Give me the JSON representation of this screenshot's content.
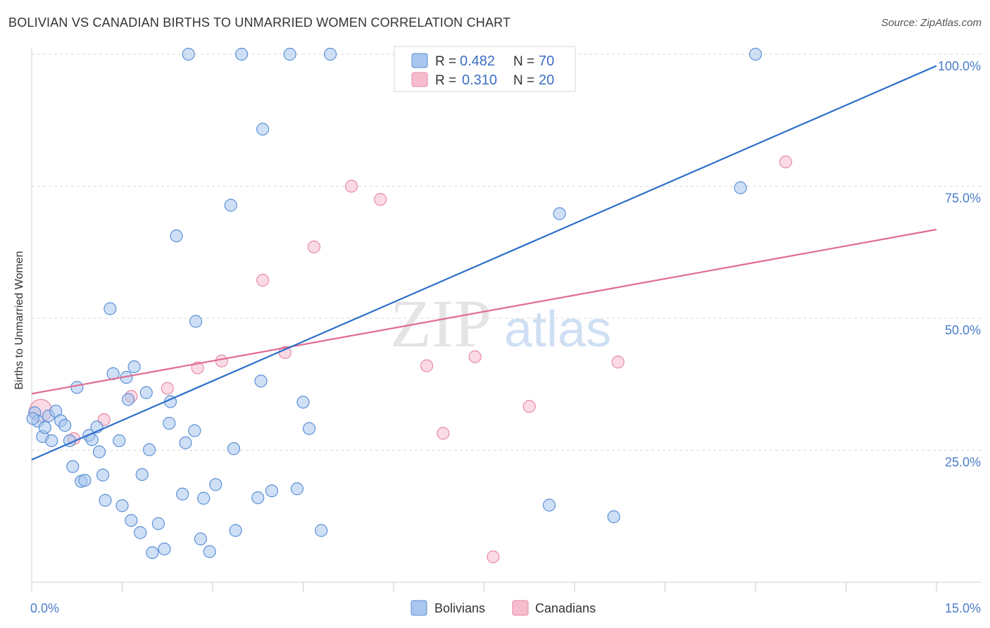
{
  "header": {
    "title": "BOLIVIAN VS CANADIAN BIRTHS TO UNMARRIED WOMEN CORRELATION CHART",
    "source": "Source: ZipAtlas.com"
  },
  "watermark": {
    "zip": "ZIP",
    "atlas": "atlas"
  },
  "colors": {
    "blue_fill": "#a8c6ee",
    "blue_stroke": "#5b8fd6",
    "blue_line": "#2b6fcb",
    "pink_fill": "#f6bccd",
    "pink_stroke": "#e68aa6",
    "pink_line": "#e06b93",
    "grid": "#d9d9d9",
    "tick_text": "#4a7cc9"
  },
  "legend": {
    "r_label": "R =",
    "n_label": "N =",
    "rows": [
      {
        "r": "0.482",
        "n": "70"
      },
      {
        "r": "0.310",
        "n": "20"
      }
    ]
  },
  "chart_data": {
    "type": "scatter",
    "title": "BOLIVIAN VS CANADIAN BIRTHS TO UNMARRIED WOMEN CORRELATION CHART",
    "ylabel": "Births to Unmarried Women",
    "xlim": [
      0,
      15
    ],
    "ylim": [
      0,
      102
    ],
    "x_tick_labels": [
      "0.0%",
      "15.0%"
    ],
    "y_ticks": [
      {
        "value": 25,
        "label": "25.0%"
      },
      {
        "value": 50,
        "label": "50.0%"
      },
      {
        "value": 75,
        "label": "75.0%"
      },
      {
        "value": 100,
        "label": "100.0%"
      }
    ],
    "series": [
      {
        "name": "Bolivians",
        "trend": {
          "x": [
            0,
            15
          ],
          "y": [
            23.2,
            97.8
          ]
        },
        "points": [
          [
            0.05,
            32.1
          ],
          [
            0.1,
            30.5
          ],
          [
            0.18,
            27.6
          ],
          [
            0.22,
            29.3
          ],
          [
            0.28,
            31.5
          ],
          [
            0.33,
            26.8
          ],
          [
            0.4,
            32.4
          ],
          [
            0.48,
            30.6
          ],
          [
            0.55,
            29.7
          ],
          [
            0.63,
            26.8
          ],
          [
            0.68,
            21.9
          ],
          [
            0.75,
            36.9
          ],
          [
            0.82,
            19.1
          ],
          [
            0.88,
            19.3
          ],
          [
            0.95,
            27.8
          ],
          [
            1.0,
            27.0
          ],
          [
            1.08,
            29.4
          ],
          [
            1.12,
            24.7
          ],
          [
            1.18,
            20.3
          ],
          [
            1.22,
            15.5
          ],
          [
            1.3,
            51.8
          ],
          [
            1.35,
            39.5
          ],
          [
            1.45,
            26.8
          ],
          [
            1.5,
            14.5
          ],
          [
            1.57,
            38.8
          ],
          [
            1.6,
            34.6
          ],
          [
            1.65,
            11.7
          ],
          [
            1.7,
            40.8
          ],
          [
            1.8,
            9.4
          ],
          [
            1.83,
            20.4
          ],
          [
            1.9,
            35.9
          ],
          [
            1.95,
            25.1
          ],
          [
            2.0,
            5.6
          ],
          [
            2.1,
            11.1
          ],
          [
            2.2,
            6.3
          ],
          [
            2.3,
            34.2
          ],
          [
            2.28,
            30.1
          ],
          [
            2.4,
            65.6
          ],
          [
            2.5,
            16.7
          ],
          [
            2.55,
            26.4
          ],
          [
            2.6,
            100.0
          ],
          [
            2.7,
            28.7
          ],
          [
            2.72,
            49.4
          ],
          [
            2.8,
            8.2
          ],
          [
            2.85,
            15.9
          ],
          [
            2.95,
            5.8
          ],
          [
            3.05,
            18.5
          ],
          [
            3.3,
            71.4
          ],
          [
            3.35,
            25.3
          ],
          [
            3.38,
            9.8
          ],
          [
            3.48,
            100.0
          ],
          [
            3.75,
            16.0
          ],
          [
            3.8,
            38.1
          ],
          [
            3.83,
            85.8
          ],
          [
            3.98,
            17.3
          ],
          [
            4.28,
            100.0
          ],
          [
            4.4,
            17.7
          ],
          [
            4.5,
            34.1
          ],
          [
            4.6,
            29.1
          ],
          [
            4.8,
            9.8
          ],
          [
            4.95,
            100.0
          ],
          [
            6.45,
            100.0
          ],
          [
            7.2,
            100.0
          ],
          [
            8.58,
            14.6
          ],
          [
            8.65,
            100.0
          ],
          [
            8.75,
            69.8
          ],
          [
            9.65,
            12.4
          ],
          [
            11.75,
            74.7
          ],
          [
            12.0,
            100.0
          ],
          [
            0.02,
            31.0
          ]
        ]
      },
      {
        "name": "Canadians",
        "trend": {
          "x": [
            0,
            15
          ],
          "y": [
            35.7,
            66.8
          ]
        },
        "points": [
          [
            0.15,
            32.5
          ],
          [
            0.7,
            27.2
          ],
          [
            1.2,
            30.8
          ],
          [
            1.65,
            35.2
          ],
          [
            2.25,
            36.7
          ],
          [
            2.75,
            40.6
          ],
          [
            3.15,
            41.9
          ],
          [
            3.83,
            57.2
          ],
          [
            4.2,
            43.5
          ],
          [
            4.68,
            63.5
          ],
          [
            5.3,
            75.0
          ],
          [
            5.78,
            72.5
          ],
          [
            6.55,
            41.0
          ],
          [
            6.82,
            28.2
          ],
          [
            7.35,
            42.7
          ],
          [
            7.65,
            4.8
          ],
          [
            8.25,
            33.3
          ],
          [
            9.72,
            41.7
          ],
          [
            12.5,
            79.6
          ],
          [
            7.4,
            100.0
          ]
        ]
      }
    ]
  },
  "bottom_legend": [
    {
      "label": "Bolivians"
    },
    {
      "label": "Canadians"
    }
  ]
}
